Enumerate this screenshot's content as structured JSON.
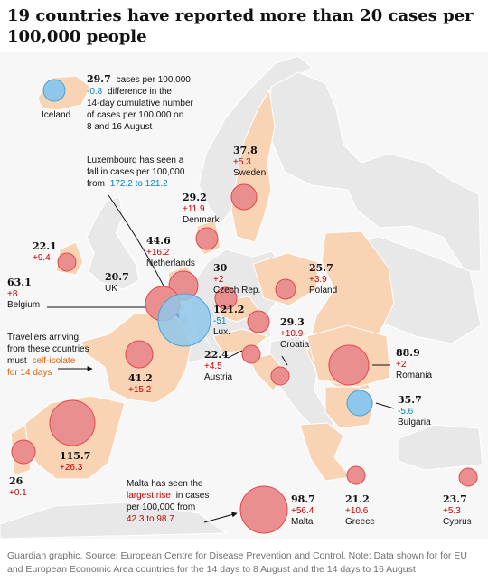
{
  "title": "19 countries have reported more than 20 cases per 100,000 people",
  "footnote": "Guardian graphic. Source: European Centre for Disease Prevention and Control. Note: Data shown for for EU and European Economic Area countries for the 14 days to 8 August and the 14 days to 16 August",
  "colors": {
    "land_highlight": "#f8d3b4",
    "land_other": "#ececec",
    "sea": "#f7f7f7",
    "bubble_increase": "#e2464b",
    "bubble_decrease": "#4aa3d8",
    "value_text": "#121212",
    "increase_text": "#c70000",
    "decrease_text": "#0084c6"
  },
  "countries": [
    {
      "key": "iceland",
      "value": "29.7",
      "change": "-0.8",
      "name": "Iceland"
    },
    {
      "key": "sweden",
      "value": "37.8",
      "change": "+5.3",
      "name": "Sweden"
    },
    {
      "key": "denmark",
      "value": "29.2",
      "change": "+11.9",
      "name": "Denmark"
    },
    {
      "key": "ireland",
      "value": "22.1",
      "change": "+9.4",
      "name": ""
    },
    {
      "key": "netherlands",
      "value": "44.6",
      "change": "+16.2",
      "name": "Netherlands"
    },
    {
      "key": "uk",
      "value": "20.7",
      "change": "",
      "name": "UK"
    },
    {
      "key": "belgium",
      "value": "63.1",
      "change": "+8",
      "name": "Belgium"
    },
    {
      "key": "czech",
      "value": "30",
      "change": "+2",
      "name": "Czech Rep."
    },
    {
      "key": "poland",
      "value": "25.7",
      "change": "+3.9",
      "name": "Poland"
    },
    {
      "key": "luxembourg",
      "value": "121.2",
      "change": "-51",
      "name": "Lux."
    },
    {
      "key": "croatia",
      "value": "29.3",
      "change": "+10.9",
      "name": "Croatia"
    },
    {
      "key": "austria",
      "value": "22.4",
      "change": "+4.5",
      "name": "Austria"
    },
    {
      "key": "france",
      "value": "41.2",
      "change": "+15.2",
      "name": ""
    },
    {
      "key": "romania",
      "value": "88.9",
      "change": "+2",
      "name": "Romania"
    },
    {
      "key": "bulgaria",
      "value": "35.7",
      "change": "-5.6",
      "name": "Bulgaria"
    },
    {
      "key": "spain",
      "value": "115.7",
      "change": "+26.3",
      "name": ""
    },
    {
      "key": "portugal",
      "value": "26",
      "change": "+0.1",
      "name": ""
    },
    {
      "key": "malta",
      "value": "98.7",
      "change": "+56.4",
      "name": "Malta"
    },
    {
      "key": "greece",
      "value": "21.2",
      "change": "+10.6",
      "name": "Greece"
    },
    {
      "key": "cyprus",
      "value": "23.7",
      "change": "+5.3",
      "name": "Cyprus"
    }
  ],
  "annotations": {
    "iceland_note": {
      "line1_suffix": "cases per 100,000",
      "line2_suffix": "difference in the",
      "line3": "14-day cumulative number",
      "line4": "of cases per 100,000 on",
      "line5": "8 and 16 August"
    },
    "lux_note": {
      "line1": "Luxembourg has seen a",
      "line2": "fall in cases per 100,000",
      "line3_prefix": "from",
      "line3_range": "172.2 to 121.2"
    },
    "travel_note": {
      "line1": "Travellers arriving",
      "line2": "from these countries",
      "line3_prefix": "must",
      "line3_highlight": "self-isolate",
      "line4_highlight": "for 14 days"
    },
    "malta_note": {
      "line1": "Malta has seen the",
      "line2_highlight": "largest rise",
      "line2_suffix": "in cases",
      "line3": "per 100,000 from",
      "line4_range": "42.3 to 98.7"
    }
  }
}
